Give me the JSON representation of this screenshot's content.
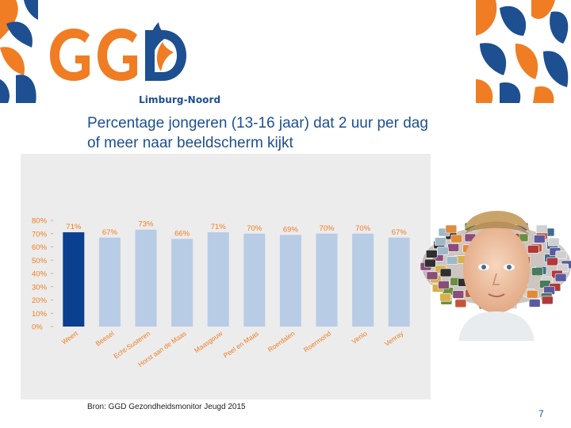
{
  "logo": {
    "name": "GGD",
    "subtitle": "Limburg-Noord"
  },
  "slide": {
    "title_line1": "Percentage jongeren (13-16 jaar) dat 2 uur per dag",
    "title_line2": "of meer naar beeldscherm kijkt",
    "source": "Bron: GGD Gezondheidsmonitor Jeugd 2015",
    "page_number": "7"
  },
  "colors": {
    "brand_blue": "#1d4f91",
    "brand_orange": "#f07d23",
    "highlight_bar": "#0b3f8f",
    "other_bars": "#b9cce5"
  },
  "chart_data": {
    "type": "bar",
    "categories": [
      "Weert",
      "Beesel",
      "Echt-Susteren",
      "Horst aan de Maas",
      "Maasgouw",
      "Peel en Maas",
      "Roerdalen",
      "Roermond",
      "Venlo",
      "Venray"
    ],
    "values": [
      71,
      67,
      73,
      66,
      71,
      70,
      69,
      70,
      70,
      67
    ],
    "value_labels": [
      "71%",
      "67%",
      "73%",
      "66%",
      "71%",
      "70%",
      "69%",
      "70%",
      "70%",
      "67%"
    ],
    "highlight_index": 0,
    "ylim": [
      0,
      80
    ],
    "yticks": [
      "0%",
      "10%",
      "20%",
      "30%",
      "40%",
      "50%",
      "60%",
      "70%",
      "80%"
    ],
    "title": "",
    "xlabel": "",
    "ylabel": "",
    "grid": false
  },
  "image": {
    "description_icon": "child-with-screens-photo"
  }
}
